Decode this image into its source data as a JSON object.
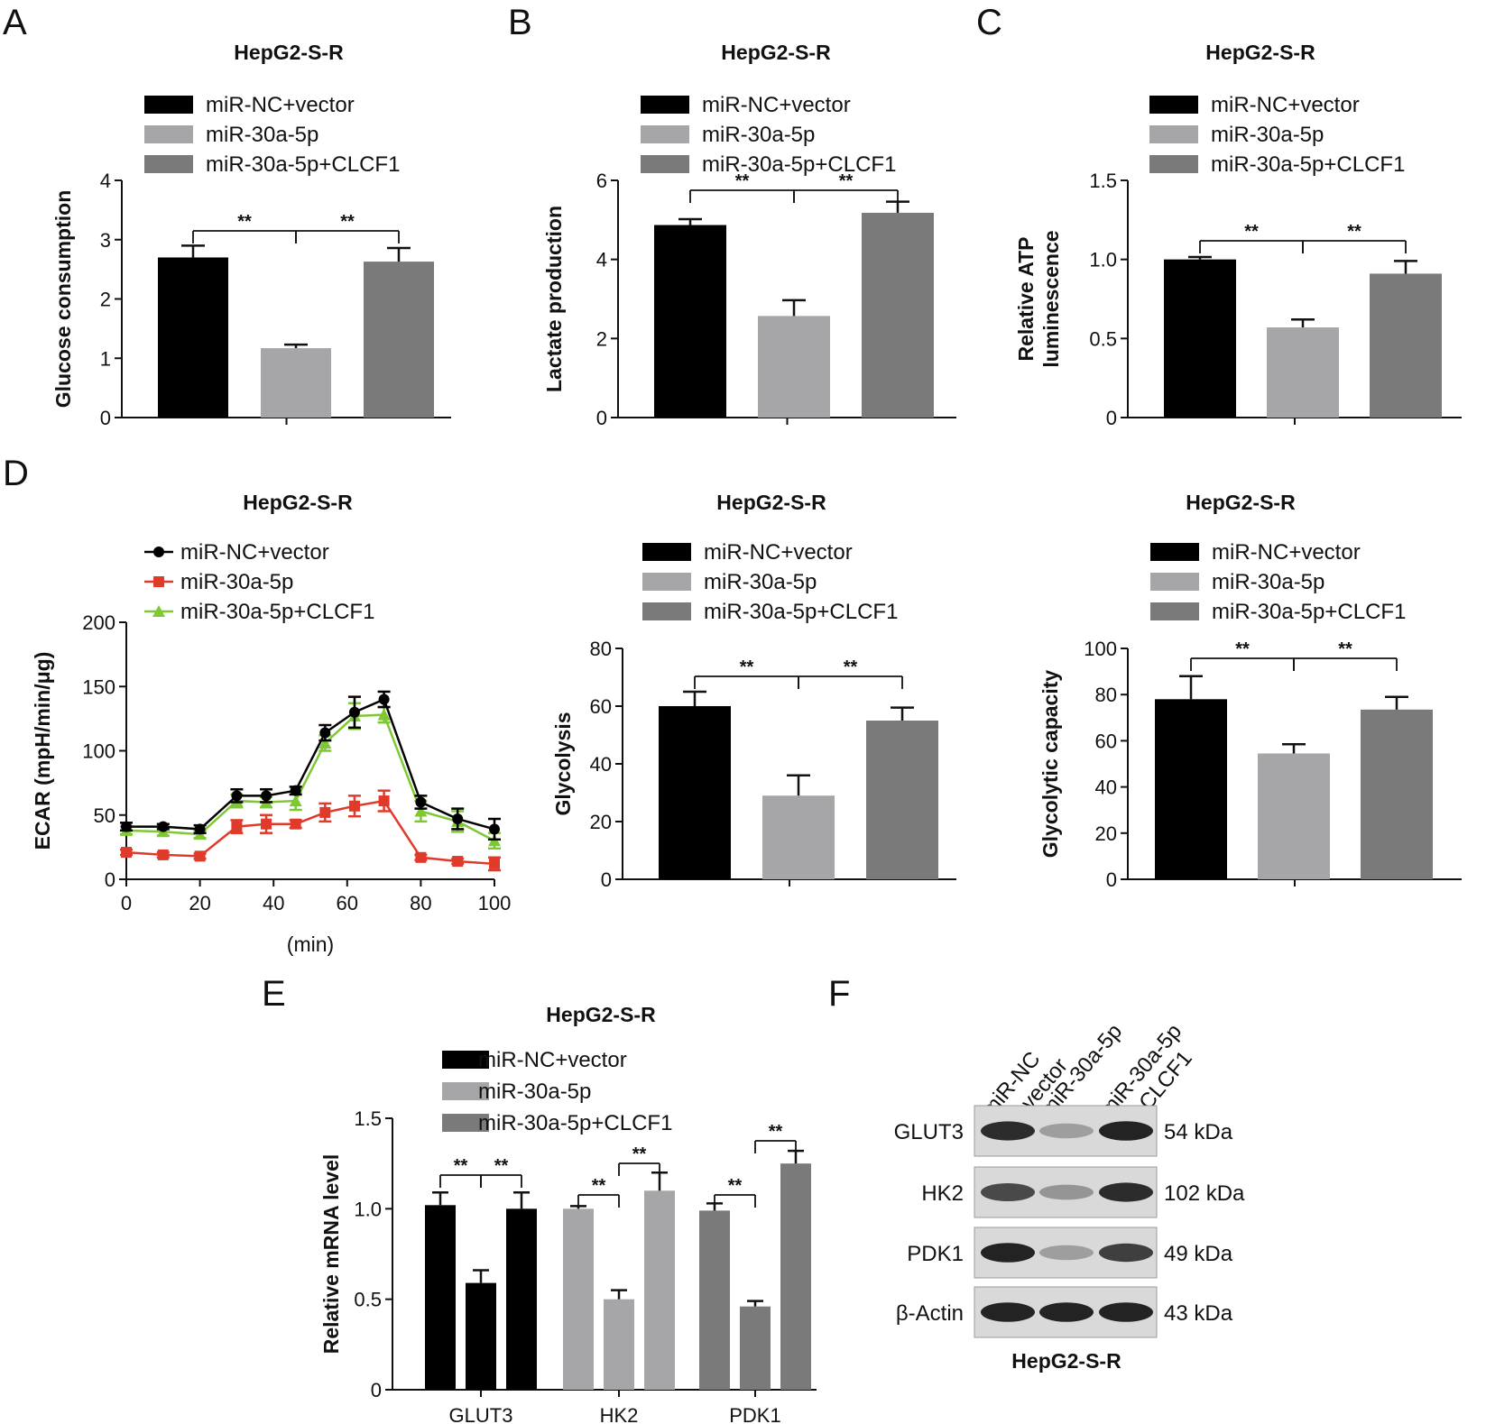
{
  "colors": {
    "black": "#000000",
    "light_gray": "#a6a6a8",
    "dark_gray": "#7a7a7a",
    "red": "#e03a2a",
    "green": "#7ec832"
  },
  "chart_data": [
    {
      "panel": "A",
      "type": "bar",
      "title": "HepG2-S-R",
      "ylabel": "Glucose consumption",
      "ylim": [
        0,
        4
      ],
      "yticks": [
        "0",
        "1",
        "2",
        "3",
        "4"
      ],
      "legend": [
        "miR-NC+vector",
        "miR-30a-5p",
        "miR-30a-5p+CLCF1"
      ],
      "values": [
        2.7,
        1.17,
        2.63
      ],
      "errors": [
        0.2,
        0.06,
        0.23
      ],
      "sig": [
        "**",
        "**"
      ]
    },
    {
      "panel": "B",
      "type": "bar",
      "title": "HepG2-S-R",
      "ylabel": "Lactate production",
      "ylim": [
        0,
        6
      ],
      "yticks": [
        "0",
        "2",
        "4",
        "6"
      ],
      "legend": [
        "miR-NC+vector",
        "miR-30a-5p",
        "miR-30a-5p+CLCF1"
      ],
      "values": [
        4.87,
        2.57,
        5.18
      ],
      "errors": [
        0.15,
        0.4,
        0.28
      ],
      "sig": [
        "**",
        "**"
      ]
    },
    {
      "panel": "C",
      "type": "bar",
      "title": "HepG2-S-R",
      "ylabel_lines": [
        "Relative ATP",
        "luminescence"
      ],
      "ylim": [
        0,
        1.5
      ],
      "yticks": [
        "0",
        "0.5",
        "1.0",
        "1.5"
      ],
      "legend": [
        "miR-NC+vector",
        "miR-30a-5p",
        "miR-30a-5p+CLCF1"
      ],
      "values": [
        1.0,
        0.57,
        0.91
      ],
      "errors": [
        0.015,
        0.05,
        0.08
      ],
      "sig": [
        "**",
        "**"
      ]
    },
    {
      "panel": "D1",
      "type": "line",
      "title": "HepG2-S-R",
      "ylabel": "ECAR (mpH/min/μg)",
      "xlabel": "(min)",
      "xlim": [
        0,
        100
      ],
      "ylim": [
        0,
        200
      ],
      "xticks": [
        "0",
        "20",
        "40",
        "60",
        "80",
        "100"
      ],
      "yticks": [
        "0",
        "50",
        "100",
        "150",
        "200"
      ],
      "x": [
        0,
        10,
        20,
        30,
        38,
        46,
        54,
        62,
        70,
        80,
        90,
        100
      ],
      "series": [
        {
          "name": "miR-NC+vector",
          "values": [
            41,
            41,
            39,
            65,
            65,
            69,
            114,
            130,
            140,
            60,
            47,
            39
          ],
          "errors": [
            3,
            2,
            3,
            5,
            5,
            3,
            6,
            12,
            6,
            5,
            8,
            8
          ]
        },
        {
          "name": "miR-30a-5p",
          "values": [
            21,
            19,
            18,
            41,
            43,
            43,
            52,
            57,
            61,
            17,
            14,
            12
          ],
          "errors": [
            2,
            2,
            2,
            5,
            7,
            3,
            7,
            8,
            8,
            2,
            2,
            5
          ]
        },
        {
          "name": "miR-30a-5p+CLCF1",
          "values": [
            38,
            37,
            35,
            61,
            60,
            61,
            106,
            127,
            128,
            53,
            45,
            30
          ],
          "errors": [
            3,
            3,
            3,
            5,
            4,
            7,
            6,
            10,
            6,
            8,
            8,
            6
          ]
        }
      ]
    },
    {
      "panel": "D2",
      "type": "bar",
      "title": "HepG2-S-R",
      "ylabel": "Glycolysis",
      "ylim": [
        0,
        80
      ],
      "yticks": [
        "0",
        "20",
        "40",
        "60",
        "80"
      ],
      "legend": [
        "miR-NC+vector",
        "miR-30a-5p",
        "miR-30a-5p+CLCF1"
      ],
      "values": [
        60,
        29,
        55
      ],
      "errors": [
        5,
        7,
        4.5
      ],
      "sig": [
        "**",
        "**"
      ]
    },
    {
      "panel": "D3",
      "type": "bar",
      "title": "HepG2-S-R",
      "ylabel": "Glycolytic capacity",
      "ylim": [
        0,
        100
      ],
      "yticks": [
        "0",
        "20",
        "40",
        "60",
        "80",
        "100"
      ],
      "legend": [
        "miR-NC+vector",
        "miR-30a-5p",
        "miR-30a-5p+CLCF1"
      ],
      "values": [
        78,
        54.5,
        73.5
      ],
      "errors": [
        10,
        4,
        5.5
      ],
      "sig": [
        "**",
        "**"
      ]
    },
    {
      "panel": "E",
      "type": "bar",
      "title": "HepG2-S-R",
      "ylabel": "Relative mRNA level",
      "ylim": [
        0,
        1.5
      ],
      "yticks": [
        "0",
        "0.5",
        "1.0",
        "1.5"
      ],
      "categories": [
        "GLUT3",
        "HK2",
        "PDK1"
      ],
      "legend": [
        "miR-NC+vector",
        "miR-30a-5p",
        "miR-30a-5p+CLCF1"
      ],
      "values": [
        [
          1.02,
          0.59,
          1.0
        ],
        [
          1.0,
          0.5,
          1.1
        ],
        [
          0.99,
          0.46,
          1.25
        ]
      ],
      "errors": [
        [
          0.07,
          0.07,
          0.09
        ],
        [
          0.015,
          0.05,
          0.1
        ],
        [
          0.04,
          0.03,
          0.07
        ]
      ],
      "sig": [
        [
          "**",
          "**"
        ],
        [
          "**",
          "**"
        ],
        [
          "**",
          "**"
        ]
      ]
    }
  ],
  "panel_letters": [
    "A",
    "B",
    "C",
    "D",
    "E",
    "F"
  ],
  "western_blot": {
    "title": "HepG2-S-R",
    "lanes": [
      "miR-NC\n+vector",
      "miR-30a-5p",
      "miR-30a-5p\n+CLCF1"
    ],
    "rows": [
      {
        "protein": "GLUT3",
        "size": "54 kDa",
        "intensity": [
          0.9,
          0.3,
          0.95
        ]
      },
      {
        "protein": "HK2",
        "size": "102 kDa",
        "intensity": [
          0.75,
          0.35,
          0.9
        ]
      },
      {
        "protein": "PDK1",
        "size": "49 kDa",
        "intensity": [
          0.95,
          0.3,
          0.8
        ]
      },
      {
        "protein": "β-Actin",
        "size": "43 kDa",
        "intensity": [
          0.95,
          0.95,
          0.95
        ]
      }
    ]
  }
}
